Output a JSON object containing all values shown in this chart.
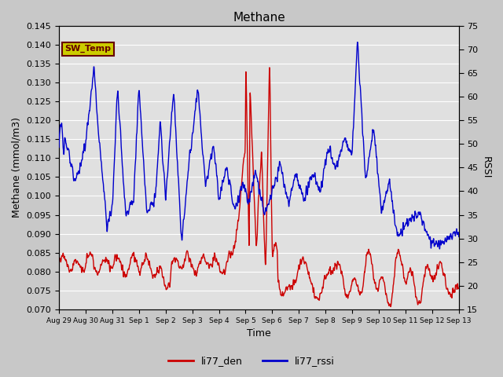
{
  "title": "Methane",
  "ylabel_left": "Methane (mmol/m3)",
  "ylabel_right": "RSSI",
  "xlabel": "Time",
  "ylim_left": [
    0.07,
    0.145
  ],
  "ylim_right": [
    15,
    75
  ],
  "yticks_left": [
    0.07,
    0.075,
    0.08,
    0.085,
    0.09,
    0.095,
    0.1,
    0.105,
    0.11,
    0.115,
    0.12,
    0.125,
    0.13,
    0.135,
    0.14,
    0.145
  ],
  "yticks_right": [
    15,
    20,
    25,
    30,
    35,
    40,
    45,
    50,
    55,
    60,
    65,
    70,
    75
  ],
  "fig_bg_color": "#c8c8c8",
  "plot_bg_color": "#e0e0e0",
  "line_color_red": "#cc0000",
  "line_color_blue": "#0000cc",
  "legend_entries": [
    "li77_den",
    "li77_rssi"
  ],
  "sw_temp_label": "SW_Temp",
  "sw_temp_bg": "#cccc00",
  "sw_temp_fg": "#660000",
  "title_fontsize": 11,
  "axis_fontsize": 9,
  "tick_fontsize": 8,
  "xtick_labels": [
    "Aug 29",
    "Aug 30",
    "Aug 31",
    "Sep 1",
    "Sep 2",
    "Sep 3",
    "Sep 4",
    "Sep 5",
    "Sep 6",
    "Sep 7",
    "Sep 8",
    "Sep 9",
    "Sep 10",
    "Sep 11",
    "Sep 12",
    "Sep 13"
  ],
  "xtick_positions": [
    0,
    1,
    2,
    3,
    4,
    5,
    6,
    7,
    8,
    9,
    10,
    11,
    12,
    13,
    14,
    15
  ]
}
